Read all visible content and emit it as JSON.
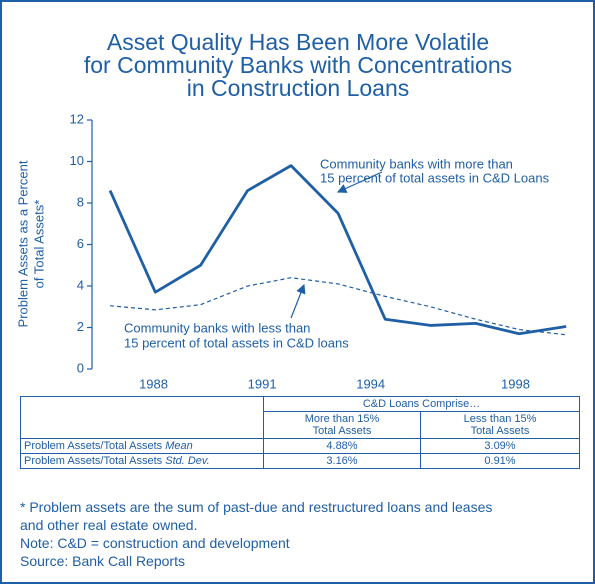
{
  "chart_data": {
    "type": "line",
    "title": [
      "Asset Quality Has Been More Volatile",
      "for Community Banks with Concentrations",
      "in Construction Loans"
    ],
    "y_label": [
      "Problem Assets as a Percent",
      "of Total Assets*"
    ],
    "x": [
      1986.8,
      1988.05,
      1989.3,
      1990.6,
      1991.8,
      1993.1,
      1994.4,
      1995.65,
      1996.9,
      1998.1,
      1999.4
    ],
    "xlim": [
      1986.3,
      1999.7
    ],
    "xticks": [
      1988,
      1991,
      1994,
      1998
    ],
    "ylim": [
      0,
      12
    ],
    "yticks": [
      0,
      2,
      4,
      6,
      8,
      10,
      12
    ],
    "series": [
      {
        "name": "Community banks with more than 15 percent of total assets in C&D Loans",
        "color": "#1f5fa6",
        "style": "solid",
        "values": [
          8.6,
          3.7,
          5.0,
          8.6,
          9.8,
          7.5,
          2.4,
          2.1,
          2.2,
          1.7,
          2.05
        ]
      },
      {
        "name": "Community banks with less than 15 percent of total assets in C&D loans",
        "color": "#1f5fa6",
        "style": "dashed",
        "values": [
          3.05,
          2.85,
          3.1,
          4.0,
          4.4,
          4.1,
          3.5,
          3.0,
          2.4,
          1.9,
          1.65
        ]
      }
    ],
    "annotations": [
      [
        "Community banks with more than",
        "15 percent of total assets in C&D Loans"
      ],
      [
        "Community banks with less than",
        "15 percent of total assets in C&D loans"
      ]
    ]
  },
  "table": {
    "group_header": "C&D Loans Comprise…",
    "columns": [
      [
        "More than 15%",
        "Total Assets"
      ],
      [
        "Less than 15%",
        "Total Assets"
      ]
    ],
    "rows": [
      {
        "label": "Problem Assets/Total Assets",
        "label_emphasis": "Mean",
        "values": [
          "4.88%",
          "3.09%"
        ]
      },
      {
        "label": "Problem Assets/Total Assets",
        "label_emphasis": "Std. Dev.",
        "values": [
          "3.16%",
          "0.91%"
        ]
      }
    ]
  },
  "footnotes": [
    "* Problem assets are the sum of past-due and restructured loans and leases",
    "and other real estate owned.",
    "Note: C&D = construction and development",
    "Source: Bank Call Reports"
  ]
}
